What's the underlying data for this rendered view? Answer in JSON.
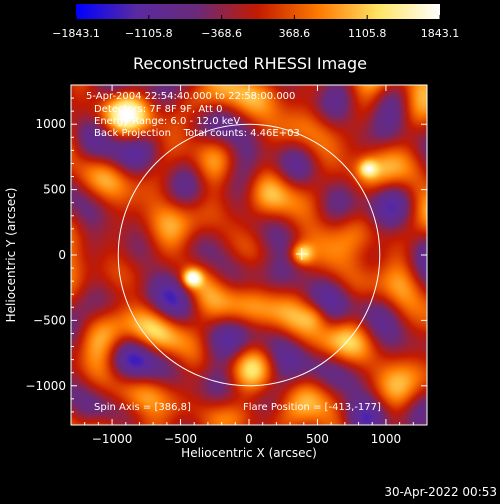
{
  "footer": {
    "timestamp": "30-Apr-2022 00:53"
  },
  "colors": {
    "background": "#000000",
    "colorbar_stops": [
      "#0000ff",
      "#5a2aa0",
      "#6a2a7a",
      "#c41a00",
      "#ff7a00",
      "#ffe566",
      "#ffffff"
    ]
  },
  "chart_data": {
    "type": "heatmap",
    "title": "Reconstructed RHESSI Image",
    "xlabel": "Heliocentric X (arcsec)",
    "ylabel": "Heliocentric Y (arcsec)",
    "xlim": [
      -1300,
      1300
    ],
    "ylim": [
      -1300,
      1300
    ],
    "x_ticks": [
      -1000,
      -500,
      0,
      500,
      1000
    ],
    "x_tick_labels": [
      "−1000",
      "−500",
      "0",
      "500",
      "1000"
    ],
    "y_ticks": [
      -1000,
      -500,
      0,
      500,
      1000
    ],
    "y_tick_labels": [
      "−1000",
      "−500",
      "0",
      "500",
      "1000"
    ],
    "colorbar": {
      "range": [
        -1843.1,
        1843.1
      ],
      "ticks": [
        -1843.1,
        -1105.8,
        -368.6,
        368.6,
        1105.8,
        1843.1
      ],
      "tick_labels": [
        "−1843.1",
        "−1105.8",
        "−368.6",
        "368.6",
        "1105.8",
        "1843.1"
      ]
    },
    "annotations": [
      "5-Apr-2004 22:54:40.000 to 22:58:00.000",
      "Detectors: 7F 8F 9F, Att 0",
      "Energy Range: 6.0 - 12.0 keV",
      "Back Projection    Total counts: 4.46E+03"
    ],
    "spin_axis_label": "Spin Axis = [386,8]",
    "flare_position_label": "Flare Position = [-413,-177]",
    "spin_axis": [
      386,
      8
    ],
    "flare_position": [
      -413,
      -177
    ],
    "solar_limb_radius_arcsec": 955,
    "sources": [
      {
        "x": -413,
        "y": -177,
        "peak": 1843.1,
        "sigma": 45
      },
      {
        "x": 386,
        "y": 8,
        "peak": 1350,
        "sigma": 55
      },
      {
        "x": 870,
        "y": 660,
        "peak": 1150,
        "sigma": 45
      },
      {
        "x": 490,
        "y": -460,
        "peak": 700,
        "sigma": 75
      }
    ]
  }
}
